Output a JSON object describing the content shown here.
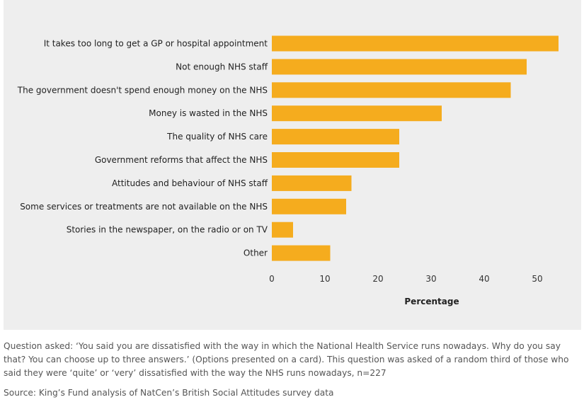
{
  "chart_data": {
    "type": "bar",
    "orientation": "horizontal",
    "categories": [
      "It takes too long to get a GP or hospital appointment",
      "Not enough NHS staff",
      "The government doesn't spend enough money on the NHS",
      "Money is wasted in the NHS",
      "The quality of NHS care",
      "Government reforms that affect the NHS",
      "Attitudes and behaviour of NHS staff",
      "Some services or treatments are not available on the NHS",
      "Stories in the newspaper, on the radio or on TV",
      "Other"
    ],
    "values": [
      54,
      48,
      45,
      32,
      24,
      24,
      15,
      14,
      4,
      11
    ],
    "xlabel": "Percentage",
    "xlim": [
      0,
      55
    ],
    "xticks": [
      0,
      10,
      20,
      30,
      40,
      50
    ],
    "grid": false,
    "bar_color": "#f5ac1e"
  },
  "caption": {
    "question": "Question asked: ‘You said you are dissatisfied with the way in which the National Health Service runs nowadays. Why do you say that? You can choose up to three answers.’ (Options presented on a card). This question was asked of a random third of those who said they were ‘quite’ or ‘very’ dissatisfied with the way the NHS runs nowadays, n=227",
    "source": "Source: King’s Fund analysis of NatCen’s British Social Attitudes survey data"
  }
}
